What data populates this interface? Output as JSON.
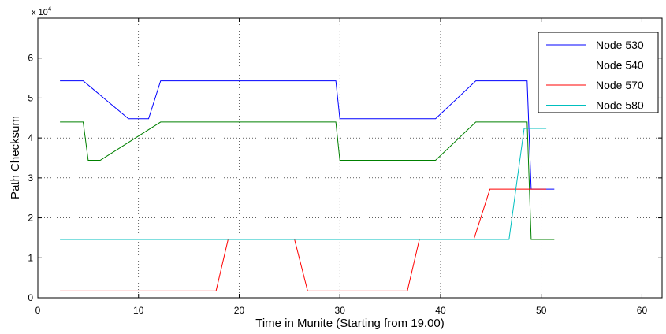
{
  "chart_data": {
    "type": "line",
    "title": "",
    "xlabel": "Time in Munite (Starting from 19.00)",
    "ylabel": "Path Checksum",
    "exponent_label_base": "x 10",
    "exponent_label_power": "4",
    "xlim": [
      0,
      62
    ],
    "ylim": [
      0,
      7
    ],
    "x_ticks": [
      0,
      10,
      20,
      30,
      40,
      50,
      60
    ],
    "y_ticks": [
      0,
      1,
      2,
      3,
      4,
      5,
      6
    ],
    "y_unit_multiplier": 10000,
    "grid": true,
    "legend_position": "top-right",
    "series": [
      {
        "name": "Node 530",
        "color": "#0000ff",
        "x": [
          2.2,
          4.5,
          9.0,
          11.0,
          12.2,
          29.6,
          30.0,
          39.5,
          43.5,
          48.6,
          49.0,
          51.3
        ],
        "y": [
          5.43,
          5.43,
          4.48,
          4.48,
          5.43,
          5.43,
          4.48,
          4.48,
          5.43,
          5.43,
          2.72,
          2.72
        ]
      },
      {
        "name": "Node 540",
        "color": "#008000",
        "x": [
          2.2,
          4.5,
          5.0,
          6.2,
          12.2,
          29.6,
          30.0,
          39.5,
          43.5,
          48.6,
          49.0,
          51.3
        ],
        "y": [
          4.4,
          4.4,
          3.44,
          3.44,
          4.4,
          4.4,
          3.44,
          3.44,
          4.4,
          4.4,
          1.46,
          1.46
        ]
      },
      {
        "name": "Node 570",
        "color": "#ff0000",
        "x": [
          2.2,
          17.7,
          18.9,
          25.5,
          26.8,
          36.7,
          37.9,
          43.3,
          44.9,
          50.5
        ],
        "y": [
          0.17,
          0.17,
          1.46,
          1.46,
          0.17,
          0.17,
          1.46,
          1.46,
          2.72,
          2.72
        ]
      },
      {
        "name": "Node 580",
        "color": "#00bfbf",
        "x": [
          2.2,
          46.8,
          48.3,
          50.5
        ],
        "y": [
          1.46,
          1.46,
          4.24,
          4.24
        ]
      }
    ]
  }
}
